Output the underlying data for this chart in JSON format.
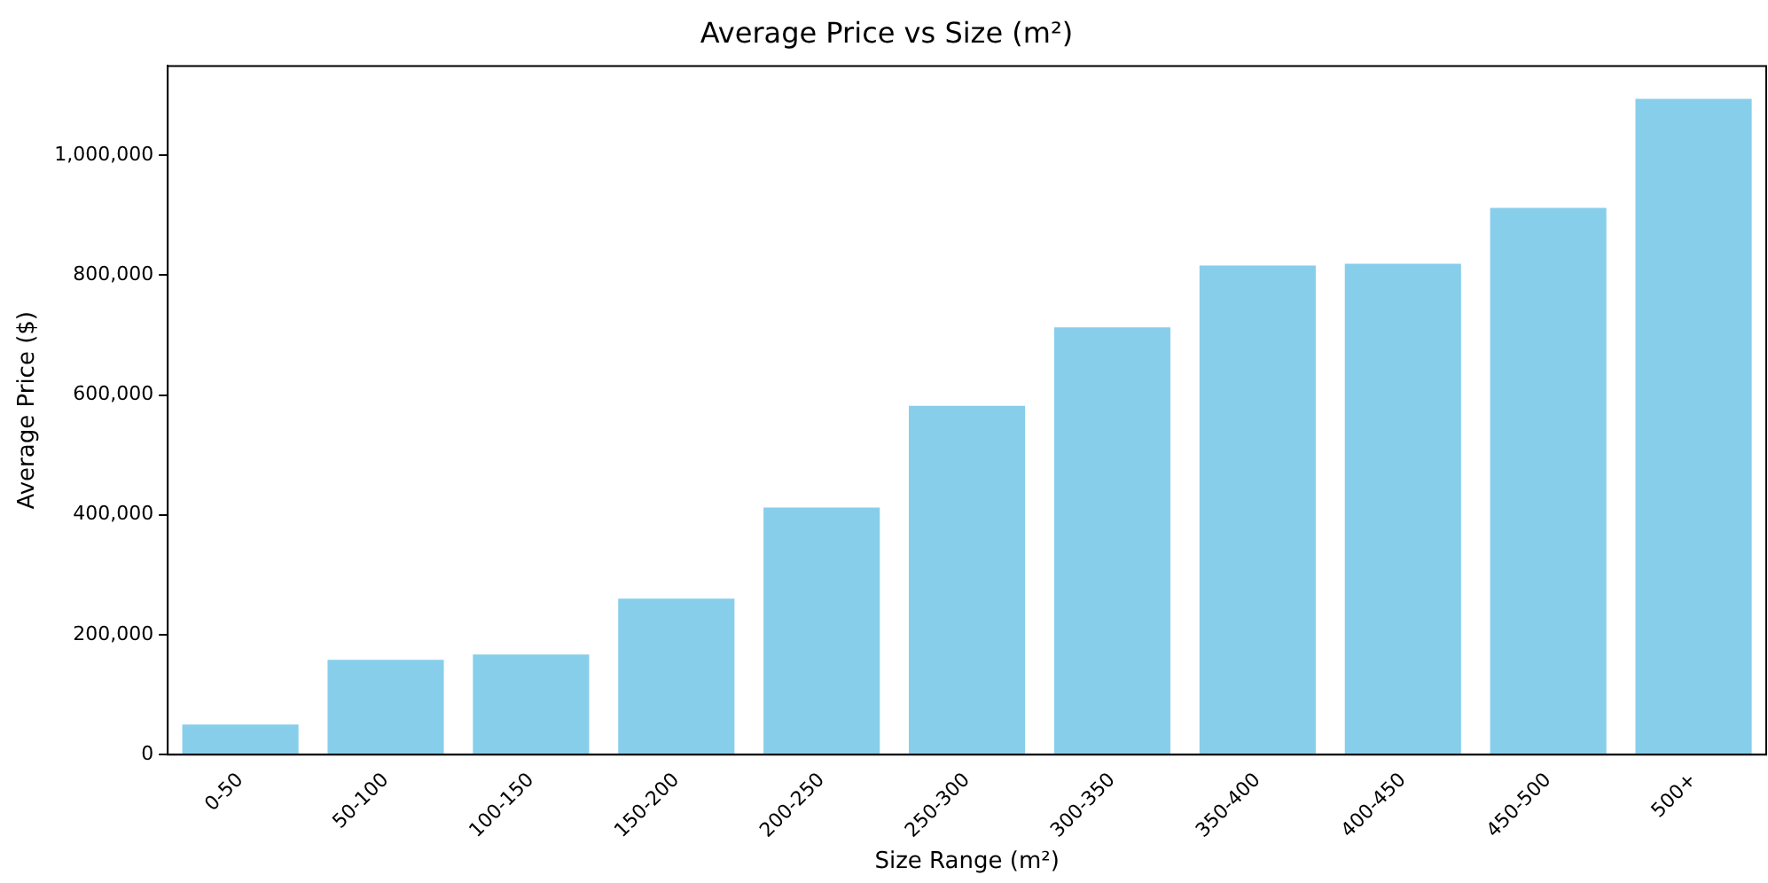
{
  "chart_data": {
    "type": "bar",
    "title": "Average Price vs Size (m²)",
    "xlabel": "Size Range (m²)",
    "ylabel": "Average Price ($)",
    "categories": [
      "0-50",
      "50-100",
      "100-150",
      "150-200",
      "200-250",
      "250-300",
      "300-350",
      "350-400",
      "400-450",
      "450-500",
      "500+"
    ],
    "values": [
      50000,
      158000,
      167000,
      260000,
      412000,
      582000,
      713000,
      816000,
      819000,
      912000,
      1094000
    ],
    "color": "#87ceeb",
    "ylim": [
      0,
      1149000
    ],
    "yticks": [
      {
        "value": 0,
        "label": "0"
      },
      {
        "value": 200000,
        "label": "200,000"
      },
      {
        "value": 400000,
        "label": "400,000"
      },
      {
        "value": 600000,
        "label": "600,000"
      },
      {
        "value": 800000,
        "label": "800,000"
      },
      {
        "value": 1000000,
        "label": "1,000,000"
      }
    ],
    "grid": false,
    "legend": false
  }
}
